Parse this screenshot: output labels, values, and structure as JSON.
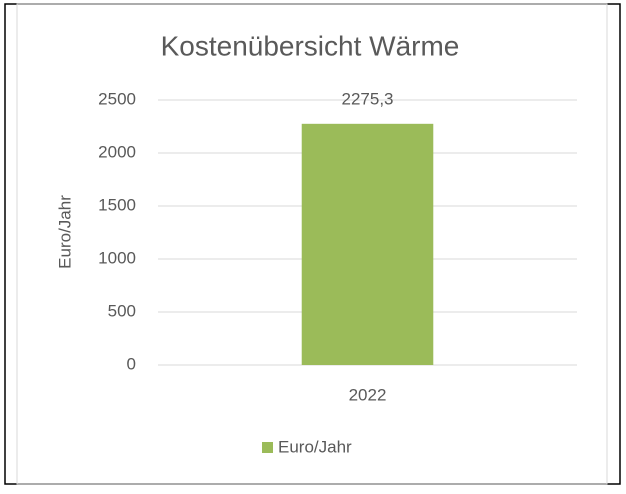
{
  "chart_data": {
    "type": "bar",
    "title": "Kostenübersicht Wärme",
    "y_label": "Euro/Jahr",
    "categories": [
      "2022"
    ],
    "series": [
      {
        "name": "Euro/Jahr",
        "color": "#9bbb59",
        "values": [
          2275.3
        ],
        "value_labels": [
          "2275,3"
        ]
      }
    ],
    "ylim": [
      0,
      2500
    ],
    "yticks": [
      0,
      500,
      1000,
      1500,
      2000,
      2500
    ],
    "grid": true,
    "legend": "bottom"
  }
}
